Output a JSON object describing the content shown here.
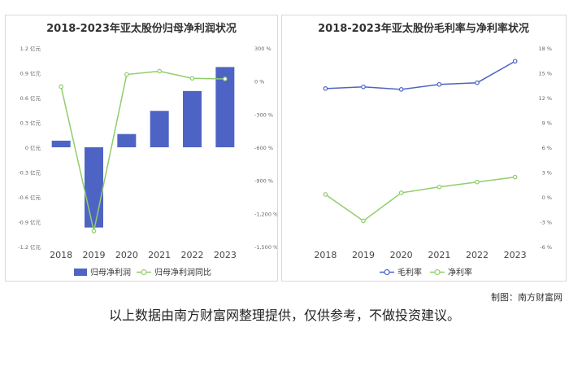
{
  "credit": "制图：南方财富网",
  "disclaimer": "以上数据由南方财富网整理提供，仅供参考，不做投资建议。",
  "chart_data": [
    {
      "type": "bar+line",
      "title": "2018-2023年亚太股份归母净利润状况",
      "categories": [
        "2018",
        "2019",
        "2020",
        "2021",
        "2022",
        "2023"
      ],
      "y_left": {
        "ticks": [
          1.2,
          0.9,
          0.6,
          0.3,
          0,
          -0.3,
          -0.6,
          -0.9,
          -1.2
        ],
        "unit": "亿元",
        "ylim": [
          -1.2,
          1.2
        ]
      },
      "y_right": {
        "ticks": [
          300,
          0,
          -300,
          -600,
          -900,
          -1200,
          -1500
        ],
        "unit": "%",
        "ylim": [
          -1500,
          300
        ]
      },
      "series": [
        {
          "name": "归母净利润",
          "kind": "bar",
          "axis": "left",
          "color": "#4e64c4",
          "values": [
            0.08,
            -0.97,
            0.16,
            0.44,
            0.68,
            0.97
          ]
        },
        {
          "name": "归母净利润同比",
          "kind": "line",
          "axis": "right",
          "color": "#8fce6a",
          "values": [
            -50,
            -1360,
            60,
            90,
            25,
            20
          ]
        }
      ],
      "legend_position": "bottom"
    },
    {
      "type": "line",
      "title": "2018-2023年亚太股份毛利率与净利率状况",
      "categories": [
        "2018",
        "2019",
        "2020",
        "2021",
        "2022",
        "2023"
      ],
      "y_right": {
        "ticks": [
          18,
          15,
          12,
          9,
          6,
          3,
          0,
          -3,
          -6
        ],
        "unit": "%",
        "ylim": [
          -6,
          18
        ]
      },
      "series": [
        {
          "name": "毛利率",
          "color": "#4e64c4",
          "values": [
            13.1,
            13.3,
            13.0,
            13.6,
            13.8,
            16.4
          ]
        },
        {
          "name": "净利率",
          "color": "#8fce6a",
          "values": [
            0.3,
            -2.9,
            0.5,
            1.2,
            1.8,
            2.4
          ]
        }
      ],
      "legend_position": "bottom"
    }
  ]
}
